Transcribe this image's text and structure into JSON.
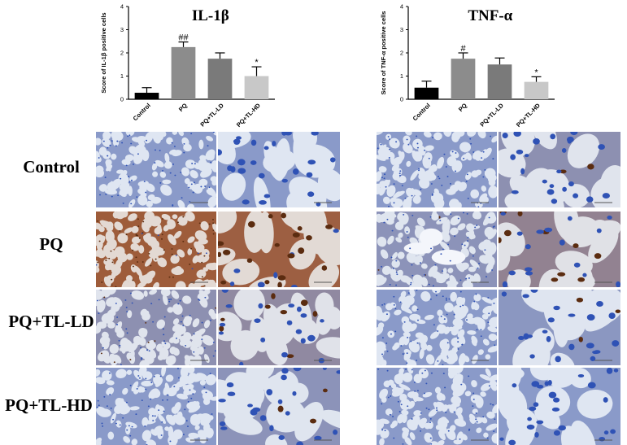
{
  "chart_data": [
    {
      "type": "bar",
      "title": "IL-1β",
      "ylabel": "Score of IL-1β positive cells",
      "xlabel": "",
      "categories": [
        "Control",
        "PQ",
        "PQ+TL-LD",
        "PQ+TL-HD"
      ],
      "values": [
        0.28,
        2.25,
        1.75,
        1.0
      ],
      "errors": [
        0.22,
        0.22,
        0.25,
        0.4
      ],
      "significance": [
        "",
        "##",
        "",
        "*"
      ],
      "ylim": [
        0,
        4
      ],
      "yticks": [
        0,
        1,
        2,
        3,
        4
      ],
      "colors": [
        "#000000",
        "#8c8c8c",
        "#7a7a7a",
        "#c8c8c8"
      ],
      "grid": false
    },
    {
      "type": "bar",
      "title": "TNF-α",
      "ylabel": "Score of TNF-α positive cells",
      "xlabel": "",
      "categories": [
        "Control",
        "PQ",
        "PQ+TL-LD",
        "PQ+TL-HD"
      ],
      "values": [
        0.5,
        1.75,
        1.5,
        0.75
      ],
      "errors": [
        0.28,
        0.25,
        0.28,
        0.22
      ],
      "significance": [
        "",
        "#",
        "",
        "*"
      ],
      "ylim": [
        0,
        4
      ],
      "yticks": [
        0,
        1,
        2,
        3,
        4
      ],
      "colors": [
        "#000000",
        "#8c8c8c",
        "#7a7a7a",
        "#c8c8c8"
      ],
      "grid": false
    }
  ],
  "micrographs": {
    "row_labels": [
      "Control",
      "PQ",
      "PQ+TL-LD",
      "PQ+TL-HD"
    ],
    "stain_colors": {
      "background": "#dfe6f2",
      "tissue": "#8a9ac9",
      "nuclei": "#2f52b5",
      "positive": "#a0552a",
      "positive_dark": "#5b2c10"
    }
  }
}
